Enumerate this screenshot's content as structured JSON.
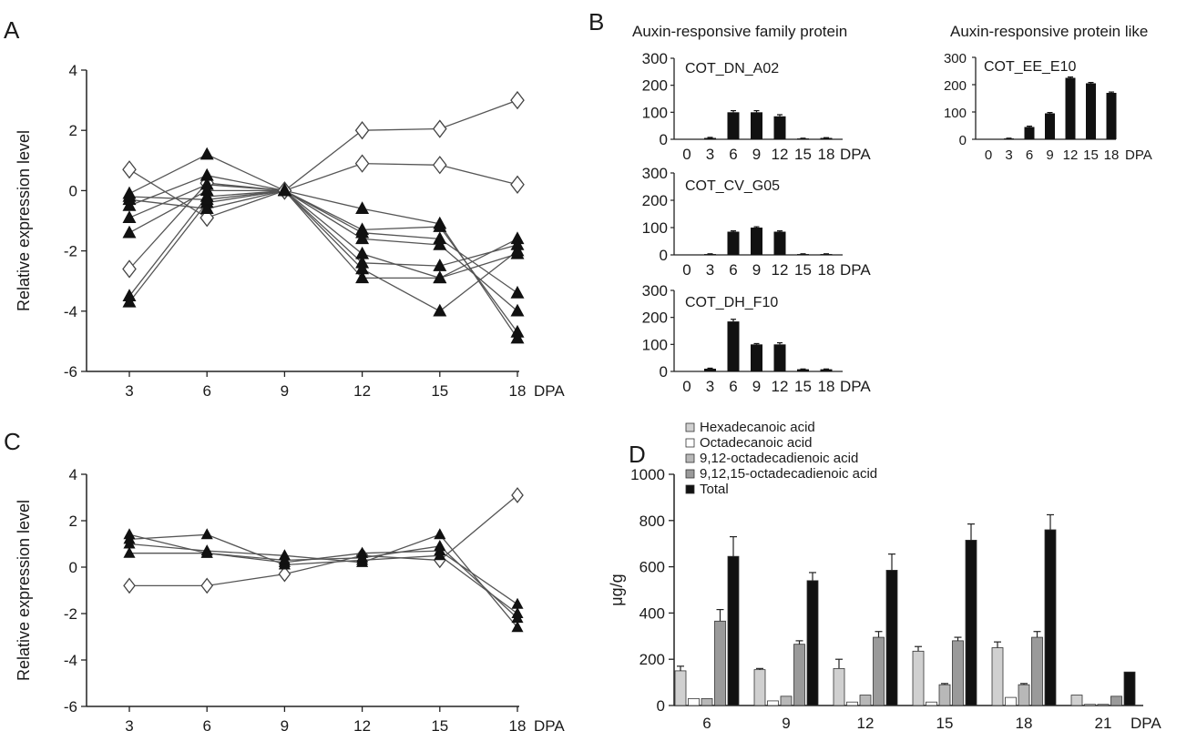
{
  "panel_letters": {
    "a": "A",
    "b": "B",
    "c": "C",
    "d": "D"
  },
  "chart_data": [
    {
      "id": "A",
      "type": "line",
      "ylabel": "Relative expression level",
      "x": [
        3,
        6,
        9,
        12,
        15,
        18
      ],
      "x_unit": "DPA",
      "ylim": [
        -6,
        4
      ],
      "yticks": [
        -6,
        -4,
        -2,
        0,
        2,
        4
      ],
      "series": [
        {
          "marker": "diamond",
          "values": [
            0.7,
            -0.9,
            0,
            2.0,
            2.05,
            3.0
          ]
        },
        {
          "marker": "diamond",
          "values": [
            -2.6,
            0.25,
            0,
            0.9,
            0.85,
            0.2
          ]
        },
        {
          "marker": "triangle",
          "values": [
            -0.1,
            1.2,
            0,
            -1.3,
            -1.2,
            -4.7
          ]
        },
        {
          "marker": "triangle",
          "values": [
            -0.5,
            0.5,
            0,
            -0.6,
            -1.1,
            -4.9
          ]
        },
        {
          "marker": "triangle",
          "values": [
            -0.9,
            0.2,
            0,
            -1.4,
            -1.6,
            -3.4
          ]
        },
        {
          "marker": "triangle",
          "values": [
            -1.4,
            0.0,
            0,
            -1.6,
            -1.8,
            -4.0
          ]
        },
        {
          "marker": "triangle",
          "values": [
            -3.5,
            -0.2,
            0,
            -2.1,
            -2.9,
            -1.6
          ]
        },
        {
          "marker": "triangle",
          "values": [
            -3.7,
            -0.4,
            0,
            -2.4,
            -2.5,
            -1.8
          ]
        },
        {
          "marker": "triangle",
          "values": [
            -0.3,
            -0.6,
            0,
            -2.9,
            -2.9,
            -2.1
          ]
        },
        {
          "marker": "triangle",
          "values": [
            -0.2,
            -0.3,
            0,
            -2.6,
            -4.0,
            -2.0
          ]
        }
      ]
    },
    {
      "id": "B",
      "type": "bar",
      "titles": [
        "Auxin-responsive family protein",
        "Auxin-responsive protein like"
      ],
      "x_unit": "DPA",
      "ylim": [
        0,
        300
      ],
      "yticks": [
        0,
        100,
        200,
        300
      ],
      "subcharts": [
        {
          "label": "COT_DN_A02",
          "categories": [
            "0",
            "3",
            "6",
            "9",
            "12",
            "15",
            "18"
          ],
          "values": [
            0,
            5,
            100,
            100,
            85,
            3,
            5
          ],
          "errors": [
            0,
            2,
            6,
            6,
            6,
            1,
            1
          ]
        },
        {
          "label": "COT_CV_G05",
          "categories": [
            "0",
            "3",
            "6",
            "9",
            "12",
            "15",
            "18"
          ],
          "values": [
            0,
            3,
            85,
            100,
            85,
            3,
            3
          ],
          "errors": [
            0,
            1,
            3,
            3,
            3,
            1,
            1
          ]
        },
        {
          "label": "COT_DH_F10",
          "categories": [
            "0",
            "3",
            "6",
            "9",
            "12",
            "15",
            "18"
          ],
          "values": [
            0,
            10,
            185,
            100,
            100,
            8,
            8
          ],
          "errors": [
            0,
            2,
            8,
            3,
            6,
            1,
            1
          ]
        },
        {
          "label": "COT_EE_E10",
          "categories": [
            "0",
            "3",
            "6",
            "9",
            "12",
            "15",
            "18"
          ],
          "values": [
            0,
            3,
            45,
            95,
            225,
            205,
            170
          ],
          "errors": [
            0,
            1,
            3,
            3,
            3,
            3,
            3
          ]
        }
      ]
    },
    {
      "id": "C",
      "type": "line",
      "ylabel": "Relative expression level",
      "x": [
        3,
        6,
        9,
        12,
        15,
        18
      ],
      "x_unit": "DPA",
      "ylim": [
        -6,
        4
      ],
      "yticks": [
        -6,
        -4,
        -2,
        0,
        2,
        4
      ],
      "series": [
        {
          "marker": "diamond",
          "values": [
            -0.8,
            -0.8,
            -0.3,
            0.5,
            0.3,
            3.1
          ]
        },
        {
          "marker": "triangle",
          "values": [
            1.4,
            0.6,
            0.2,
            0.6,
            0.7,
            -1.6
          ]
        },
        {
          "marker": "triangle",
          "values": [
            1.2,
            1.4,
            0.1,
            0.3,
            0.5,
            -2.0
          ]
        },
        {
          "marker": "triangle",
          "values": [
            1.0,
            0.7,
            0.5,
            0.2,
            1.4,
            -2.6
          ]
        },
        {
          "marker": "triangle",
          "values": [
            0.6,
            0.6,
            0.3,
            0.4,
            0.9,
            -2.2
          ]
        }
      ]
    },
    {
      "id": "D",
      "type": "bar",
      "ylabel": "μg/g",
      "categories": [
        "6",
        "9",
        "12",
        "15",
        "18",
        "21"
      ],
      "x_unit": "DPA",
      "ylim": [
        0,
        1000
      ],
      "yticks": [
        0,
        200,
        400,
        600,
        800,
        1000
      ],
      "series": [
        {
          "name": "Hexadecanoic acid",
          "color": "#d0d0d0",
          "values": [
            150,
            155,
            160,
            235,
            250,
            45
          ],
          "errors": [
            20,
            5,
            40,
            20,
            25,
            0
          ]
        },
        {
          "name": "Octadecanoic acid",
          "color": "#ffffff",
          "values": [
            30,
            20,
            15,
            15,
            35,
            5
          ],
          "errors": [
            0,
            0,
            0,
            0,
            0,
            0
          ]
        },
        {
          "name": "9,12-octadecadienoic acid",
          "color": "#b8b8b8",
          "values": [
            30,
            40,
            45,
            90,
            90,
            5
          ],
          "errors": [
            0,
            0,
            0,
            5,
            5,
            0
          ]
        },
        {
          "name": "9,12,15-octadecadienoic acid",
          "color": "#9a9a9a",
          "values": [
            365,
            265,
            295,
            280,
            295,
            40
          ],
          "errors": [
            50,
            15,
            25,
            15,
            25,
            0
          ]
        },
        {
          "name": "Total",
          "color": "#111111",
          "values": [
            645,
            540,
            585,
            715,
            760,
            145
          ],
          "errors": [
            85,
            35,
            70,
            70,
            65,
            0
          ]
        }
      ]
    }
  ]
}
